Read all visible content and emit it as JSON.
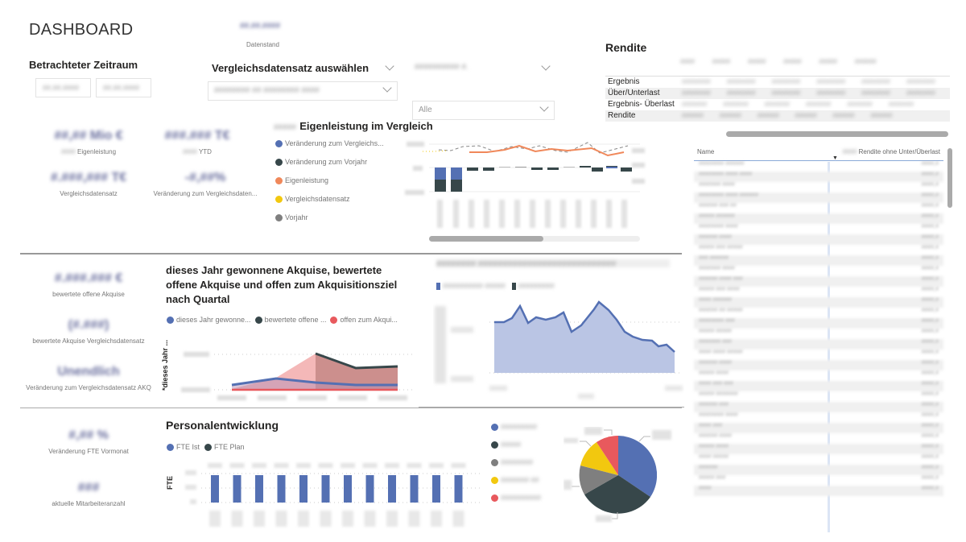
{
  "header": {
    "title": "DASHBOARD",
    "datenstand_value": "##.##.####",
    "datenstand_label": "Datenstand"
  },
  "filters": {
    "zeitraum_title": "Betrachteter Zeitraum",
    "zeitraum_from": "##.##.####",
    "zeitraum_to": "##.##.####",
    "vergleich_title": "Vergleichsdatensatz auswählen",
    "vergleich_value": "######## ## ######## ####",
    "filter2_title": "########## #.",
    "filter2_value": "Alle"
  },
  "kpis_top": [
    {
      "value": "##,## Mio €",
      "label": "Eigenleistung",
      "label_prefix": "####"
    },
    {
      "value": "###.### T€",
      "label": "YTD",
      "label_prefix": "####"
    },
    {
      "value": "#.###,### T€",
      "label": "Vergleichsdatensatz"
    },
    {
      "value": "-#,##%",
      "label": "Veränderung zum Vergleichsdaten..."
    }
  ],
  "eigenleistung_chart": {
    "title": "Eigenleistung im Vergleich",
    "title_prefix": "#####",
    "legend": [
      {
        "label": "Veränderung zum Vergleichs...",
        "color": "#5470b3"
      },
      {
        "label": "Veränderung zum Vorjahr",
        "color": "#37474a"
      },
      {
        "label": "Eigenleistung",
        "color": "#f0885a"
      },
      {
        "label": "Vergleichsdatensatz",
        "color": "#f2c80f"
      },
      {
        "label": "Vorjahr",
        "color": "#7f7f7f"
      }
    ]
  },
  "rendite": {
    "title": "Rendite",
    "columns": [
      "####",
      "#####",
      "#####",
      "#####",
      "#####",
      "######"
    ],
    "rows": [
      {
        "label": "Ergebnis",
        "values": [
          "#.###",
          "###.###",
          "##.###",
          "#.###.#",
          "###.###",
          "###.###"
        ]
      },
      {
        "label": "Über/Unterlast",
        "values": [
          "#.###",
          "###.###",
          "###.###",
          "#.###.#",
          "###.###",
          "###.###"
        ]
      },
      {
        "label": "Ergebnis- Überlast",
        "values": [
          "###",
          "##.###",
          "#.###",
          "##.###",
          "#.###",
          "#####"
        ]
      },
      {
        "label": "Rendite",
        "values": [
          "###,#",
          "##,#%",
          "##,#%",
          "###,#",
          "###,#%",
          "##,##"
        ]
      }
    ]
  },
  "name_table": {
    "col_name": "Name",
    "col_value": "Rendite ohne Unter/Überlast",
    "col_value_prefix": "####",
    "rows": [
      "######## ######",
      "######## #### ####",
      "####### ####",
      "######## #### ######",
      "###### ### ##",
      "##### ######",
      "######## ####",
      "###### ####",
      "##### ### #####",
      "### ######",
      "####### ####",
      "###### #### ###",
      "##### ### ####",
      "#### ######",
      "###### ## #####",
      "######## ###",
      "##### #####",
      "####### ###",
      "#### #### #####",
      "###### ####",
      "##### ####",
      "#### ### ###",
      "##### #######",
      "###### ###",
      "######## ####",
      "#### ###",
      "###### ####",
      "##### ####",
      "#### #####",
      "######",
      "##### ###",
      "####"
    ]
  },
  "akquise_kpis": [
    {
      "value": "#.###.### €",
      "label": "bewertete offene Akquise"
    },
    {
      "value": "(#.###)",
      "label": "bewertete Akquise Vergleichsdatensatz"
    },
    {
      "value": "Unendlich",
      "label": "Veränderung zum Vergleichsdatensatz AKQ"
    }
  ],
  "akquise_chart": {
    "title": "dieses Jahr gewonnene Akquise, bewertete offene Akquise und offen zum Akquisitionsziel nach Quartal",
    "ylabel": "*dieses Jahr ...",
    "legend": [
      {
        "label": "dieses Jahr gewonne...",
        "color": "#5470b3"
      },
      {
        "label": "bewertete offene ...",
        "color": "#37474a"
      },
      {
        "label": "offen zum Akqui...",
        "color": "#e8595d"
      }
    ]
  },
  "area_chart": {
    "title": "######## ############################",
    "legend": [
      {
        "label": "########## #####",
        "color": "#5470b3"
      },
      {
        "label": "#########",
        "color": "#37474a"
      }
    ]
  },
  "fte_kpis": [
    {
      "value": "#,## %",
      "label": "Veränderung FTE Vormonat"
    },
    {
      "value": "###",
      "label": "aktuelle Mitarbeiteranzahl"
    }
  ],
  "personal_chart": {
    "title": "Personalentwicklung",
    "ylabel": "FTE",
    "legend": [
      {
        "label": "FTE Ist",
        "color": "#5470b3"
      },
      {
        "label": "FTE Plan",
        "color": "#37474a"
      }
    ]
  },
  "pie": {
    "legend": [
      {
        "label": "#########",
        "color": "#5470b3"
      },
      {
        "label": "#####",
        "color": "#37474a"
      },
      {
        "label": "########",
        "color": "#7f7f7f"
      },
      {
        "label": "####### ##",
        "color": "#f2c80f"
      },
      {
        "label": "##########",
        "color": "#e8595d"
      }
    ]
  }
}
